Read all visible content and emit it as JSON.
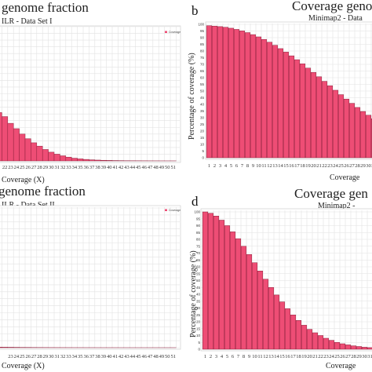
{
  "colors": {
    "bar": "#ee4d75",
    "bar_edge": "#8c1f3a",
    "grid": "#e2e2e2"
  },
  "chart_data": [
    {
      "panel": "a",
      "panel_label": "",
      "type": "bar",
      "title": "genome fraction",
      "subtitle": "ILR - Data Set I",
      "xlabel": "Coverage (X)",
      "ylabel": "",
      "legend": "Coverage",
      "legend_position": "top-right",
      "grid": true,
      "categories": [
        21,
        22,
        23,
        24,
        25,
        26,
        27,
        28,
        29,
        30,
        31,
        32,
        33,
        34,
        35,
        36,
        37,
        38,
        39,
        40,
        41,
        42,
        43,
        44,
        45,
        46,
        47,
        48,
        49,
        50,
        51
      ],
      "tick_labels": [
        "",
        "22",
        "23",
        "24",
        "25",
        "26",
        "27",
        "28",
        "29",
        "30",
        "31",
        "32",
        "33",
        "34",
        "35",
        "36",
        "37",
        "38",
        "39",
        "40",
        "41",
        "42",
        "43",
        "44",
        "45",
        "46",
        "47",
        "48",
        "49",
        "50",
        "51"
      ],
      "values": [
        36,
        33,
        28,
        24,
        20,
        16.5,
        13.5,
        11,
        8.5,
        6.5,
        5,
        3.8,
        2.8,
        2,
        1.5,
        1.1,
        0.8,
        0.6,
        0.45,
        0.35,
        0.25,
        0.2,
        0.15,
        0.12,
        0.1,
        0.08,
        0.06,
        0.05,
        0.04,
        0.03,
        0.03
      ],
      "ylim": [
        0,
        100
      ]
    },
    {
      "panel": "b",
      "panel_label": "b",
      "type": "bar",
      "title": "Coverage geno",
      "subtitle": "Minimap2 - Data",
      "xlabel": "Coverage",
      "ylabel": "Percentage of coverage (%)",
      "legend": "",
      "grid": true,
      "categories": [
        1,
        2,
        3,
        4,
        5,
        6,
        7,
        8,
        9,
        10,
        11,
        12,
        13,
        14,
        15,
        16,
        17,
        18,
        19,
        20,
        21,
        22,
        23,
        24,
        25,
        26,
        27,
        28,
        29,
        30,
        31,
        32
      ],
      "tick_labels": [
        "1",
        "2",
        "3",
        "4",
        "5",
        "6",
        "7",
        "8",
        "9",
        "10",
        "11",
        "12",
        "13",
        "14",
        "15",
        "16",
        "17",
        "18",
        "19",
        "20",
        "21",
        "22",
        "23",
        "24",
        "25",
        "26",
        "27",
        "28",
        "29",
        "30",
        "31",
        "32"
      ],
      "y_ticks": [
        0,
        5,
        10,
        15,
        20,
        25,
        30,
        35,
        40,
        45,
        50,
        55,
        60,
        65,
        70,
        75,
        80,
        85,
        90,
        95,
        100
      ],
      "values": [
        99,
        98.7,
        98.3,
        97.8,
        97.1,
        96.2,
        95.1,
        93.8,
        92.3,
        90.6,
        88.7,
        86.6,
        84.3,
        81.8,
        79.2,
        76.4,
        73.5,
        70.4,
        67.2,
        64,
        60.7,
        57.3,
        54,
        50.6,
        47.3,
        44,
        40.8,
        37.7,
        34.7,
        31.9,
        29.2,
        26.7
      ],
      "ylim": [
        0,
        100
      ]
    },
    {
      "panel": "c",
      "panel_label": "",
      "type": "bar",
      "title": "genome fraction",
      "subtitle": "ILR - Data Set II",
      "xlabel": "Coverage (X)",
      "ylabel": "",
      "legend": "Coverage",
      "legend_position": "top-right",
      "grid": true,
      "categories": [
        21,
        22,
        23,
        24,
        25,
        26,
        27,
        28,
        29,
        30,
        31,
        32,
        33,
        34,
        35,
        36,
        37,
        38,
        39,
        40,
        41,
        42,
        43,
        44,
        45,
        46,
        47,
        48,
        49,
        50,
        51
      ],
      "tick_labels": [
        "",
        "",
        "23",
        "24",
        "25",
        "26",
        "27",
        "28",
        "29",
        "30",
        "31",
        "32",
        "33",
        "34",
        "35",
        "36",
        "37",
        "38",
        "39",
        "40",
        "41",
        "42",
        "43",
        "44",
        "45",
        "46",
        "47",
        "48",
        "49",
        "50",
        "51"
      ],
      "values": [
        0.4,
        0.35,
        0.3,
        0.25,
        0.2,
        0.18,
        0.15,
        0.12,
        0.1,
        0.08,
        0.07,
        0.06,
        0.05,
        0.04,
        0.04,
        0.03,
        0.03,
        0.02,
        0.02,
        0.02,
        0.02,
        0.01,
        0.01,
        0.01,
        0.01,
        0.01,
        0.01,
        0.01,
        0.01,
        0.01,
        0.01
      ],
      "ylim": [
        0,
        100
      ]
    },
    {
      "panel": "d",
      "panel_label": "d",
      "type": "bar",
      "title": "Coverage gen",
      "subtitle": "Minimap2 -",
      "xlabel": "Coverage",
      "ylabel": "Percentage of coverage (%)",
      "legend": "",
      "grid": true,
      "categories": [
        1,
        2,
        3,
        4,
        5,
        6,
        7,
        8,
        9,
        10,
        11,
        12,
        13,
        14,
        15,
        16,
        17,
        18,
        19,
        20,
        21,
        22,
        23,
        24,
        25,
        26,
        27,
        28,
        29,
        30,
        31,
        32
      ],
      "tick_labels": [
        "1",
        "2",
        "3",
        "4",
        "5",
        "6",
        "7",
        "8",
        "9",
        "10",
        "11",
        "12",
        "13",
        "14",
        "15",
        "16",
        "17",
        "18",
        "19",
        "20",
        "21",
        "22",
        "23",
        "24",
        "25",
        "26",
        "27",
        "28",
        "29",
        "30",
        "31",
        "32"
      ],
      "y_ticks": [
        0,
        5,
        10,
        15,
        20,
        25,
        30,
        35,
        40,
        45,
        50,
        55,
        60,
        65,
        70,
        75,
        80,
        85,
        90,
        95,
        100
      ],
      "values": [
        100,
        99,
        97,
        94,
        90,
        85.5,
        80.5,
        75,
        69,
        63,
        57,
        51,
        45,
        39.5,
        34.5,
        29.5,
        25,
        21,
        17.5,
        14.5,
        12,
        10,
        8,
        6.5,
        5,
        4,
        3.2,
        2.5,
        2,
        1.5,
        1.2,
        1
      ],
      "ylim": [
        0,
        100
      ]
    }
  ]
}
